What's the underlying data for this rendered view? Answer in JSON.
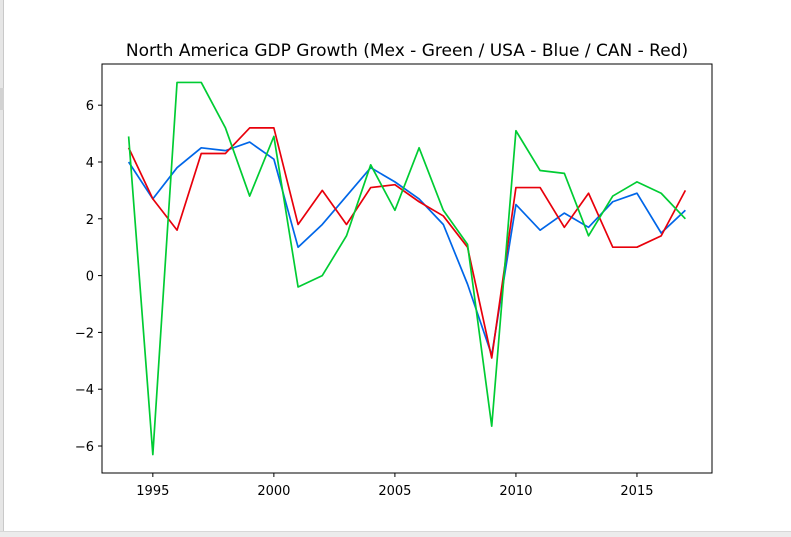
{
  "chart_data": {
    "type": "line",
    "title": "North America GDP Growth (Mex - Green / USA - Blue / CAN - Red)",
    "xlabel": "",
    "ylabel": "",
    "xlim": [
      1992.9,
      2018.1
    ],
    "ylim": [
      -6.95,
      7.45
    ],
    "grid": false,
    "x_ticks": [
      1995,
      2000,
      2005,
      2010,
      2015
    ],
    "y_ticks": [
      -6,
      -4,
      -2,
      0,
      2,
      4,
      6
    ],
    "x_tick_labels": [
      "1995",
      "2000",
      "2005",
      "2010",
      "2015"
    ],
    "y_tick_labels": [
      "−6",
      "−4",
      "−2",
      "0",
      "2",
      "4",
      "6"
    ],
    "x": [
      1994,
      1995,
      1996,
      1997,
      1998,
      1999,
      2000,
      2001,
      2002,
      2003,
      2004,
      2005,
      2006,
      2007,
      2008,
      2009,
      2010,
      2011,
      2012,
      2013,
      2014,
      2015,
      2016,
      2017
    ],
    "series": [
      {
        "color": "#0066e8",
        "values": [
          4.0,
          2.7,
          3.8,
          4.5,
          4.4,
          4.7,
          4.1,
          1.0,
          1.8,
          2.8,
          3.8,
          3.3,
          2.7,
          1.8,
          -0.3,
          -2.8,
          2.5,
          1.6,
          2.2,
          1.7,
          2.6,
          2.9,
          1.5,
          2.3
        ]
      },
      {
        "color": "#e8000b",
        "values": [
          4.5,
          2.7,
          1.6,
          4.3,
          4.3,
          5.2,
          5.2,
          1.8,
          3.0,
          1.8,
          3.1,
          3.2,
          2.6,
          2.1,
          1.0,
          -2.9,
          3.1,
          3.1,
          1.7,
          2.9,
          1.0,
          1.0,
          1.4,
          3.0
        ]
      },
      {
        "color": "#00cc33",
        "values": [
          4.9,
          -6.3,
          6.8,
          6.8,
          5.2,
          2.8,
          4.9,
          -0.4,
          0.0,
          1.4,
          3.9,
          2.3,
          4.5,
          2.3,
          1.1,
          -5.3,
          5.1,
          3.7,
          3.6,
          1.4,
          2.8,
          3.3,
          2.9,
          2.0
        ]
      }
    ]
  }
}
